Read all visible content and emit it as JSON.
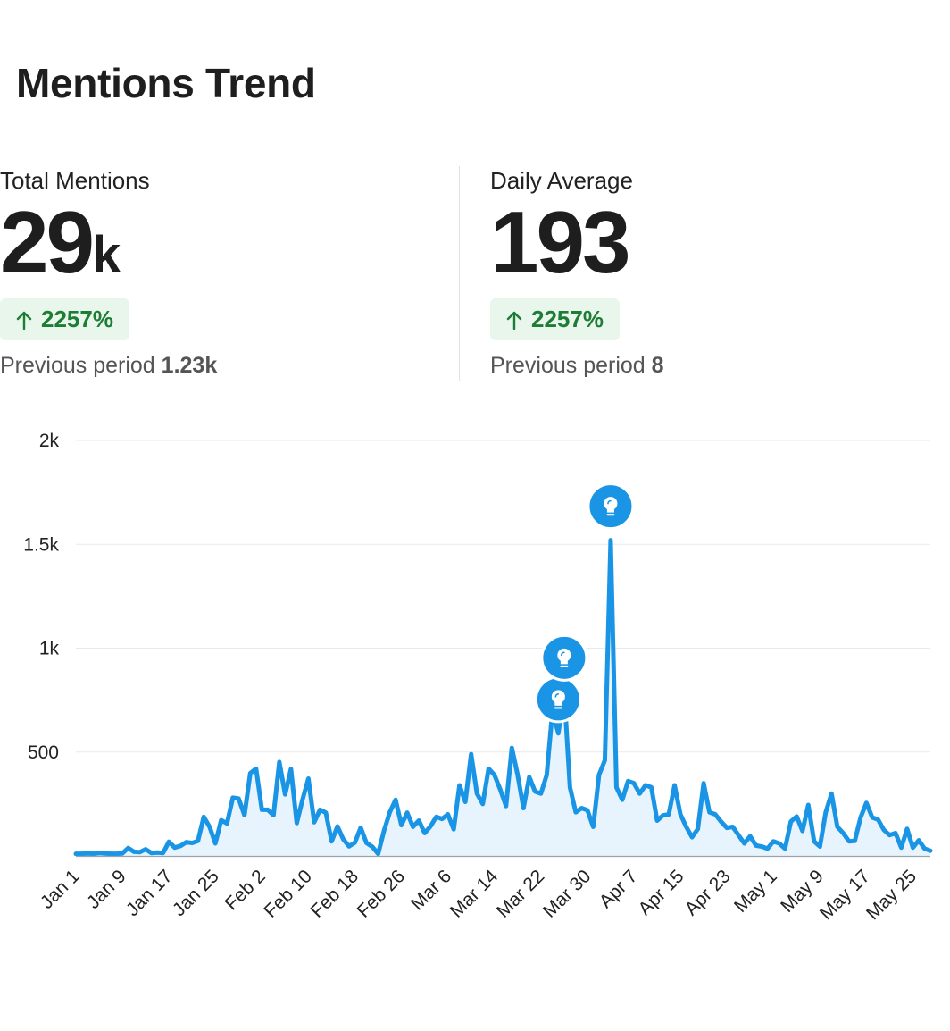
{
  "header": {
    "title": "Mentions Trend"
  },
  "stats": [
    {
      "label": "Total Mentions",
      "value": "29",
      "suffix": "k",
      "change": "2257%",
      "previous_label": "Previous period",
      "previous_value": "1.23k"
    },
    {
      "label": "Daily Average",
      "value": "193",
      "suffix": "",
      "change": "2257%",
      "previous_label": "Previous period",
      "previous_value": "8"
    }
  ],
  "colors": {
    "line": "#1a95e6",
    "fill": "#e8f4fd",
    "badge_bg": "#e9f6ec",
    "badge_text": "#1d7d35"
  },
  "chart_data": {
    "type": "area",
    "title": "",
    "xlabel": "",
    "ylabel": "",
    "ylim": [
      0,
      2000
    ],
    "yticks": [
      500,
      1000,
      1500,
      2000
    ],
    "ytick_labels": [
      "500",
      "1k",
      "1.5k",
      "2k"
    ],
    "xtick_labels": [
      "Jan 1",
      "Jan 9",
      "Jan 17",
      "Jan 25",
      "Feb 2",
      "Feb 10",
      "Feb 18",
      "Feb 26",
      "Mar 6",
      "Mar 14",
      "Mar 22",
      "Mar 30",
      "Apr 7",
      "Apr 15",
      "Apr 23",
      "May 1",
      "May 9",
      "May 17",
      "May 25"
    ],
    "grid": true,
    "series": [
      {
        "values": [
          10,
          10,
          12,
          10,
          14,
          12,
          10,
          10,
          12,
          38,
          20,
          18,
          32,
          14,
          16,
          14,
          68,
          40,
          48,
          66,
          62,
          72,
          188,
          140,
          60,
          172,
          156,
          280,
          276,
          196,
          398,
          420,
          222,
          222,
          196,
          452,
          296,
          418,
          158,
          272,
          372,
          162,
          222,
          208,
          70,
          142,
          80,
          46,
          64,
          136,
          62,
          44,
          10,
          120,
          210,
          270,
          148,
          208,
          140,
          170,
          110,
          142,
          188,
          178,
          200,
          128,
          340,
          260,
          490,
          300,
          250,
          420,
          390,
          320,
          240,
          520,
          390,
          230,
          380,
          310,
          300,
          390,
          700,
          590,
          790,
          330,
          210,
          230,
          220,
          140,
          390,
          460,
          1520,
          330,
          270,
          360,
          350,
          300,
          340,
          330,
          170,
          195,
          200,
          340,
          200,
          140,
          90,
          130,
          350,
          210,
          200,
          165,
          135,
          140,
          100,
          60,
          95,
          50,
          45,
          35,
          70,
          60,
          35,
          165,
          190,
          120,
          245,
          70,
          45,
          210,
          300,
          140,
          110,
          70,
          72,
          185,
          255,
          185,
          175,
          125,
          100,
          110,
          40,
          130,
          40,
          75,
          35,
          25
        ]
      }
    ],
    "annotations": [
      {
        "type": "insight",
        "x_index": 83,
        "value": 590,
        "icon": "lightbulb-icon"
      },
      {
        "type": "insight",
        "x_index": 84,
        "value": 790,
        "icon": "lightbulb-icon"
      },
      {
        "type": "insight",
        "x_index": 92,
        "value": 1520,
        "icon": "lightbulb-icon"
      }
    ]
  }
}
